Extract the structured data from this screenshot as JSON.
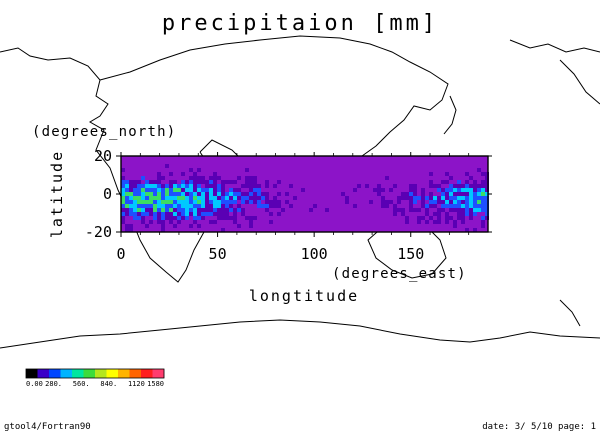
{
  "title": "precipitaion [mm]",
  "axes": {
    "y_label": "latitude",
    "y_units": "(degrees_north)",
    "x_label": "longtitude",
    "x_units": "(degrees_east)",
    "x_ticks": [
      "0",
      "50",
      "100",
      "150"
    ],
    "y_ticks": [
      "20",
      "0",
      "-20"
    ]
  },
  "colorbar": {
    "labels": [
      "0.00",
      "280.",
      "560.",
      "840.",
      "1120",
      "1580"
    ],
    "colors": [
      "#000000",
      "#3a00c8",
      "#0046ff",
      "#00b4ff",
      "#00e6a0",
      "#3cdc3c",
      "#b4e61e",
      "#ffff00",
      "#ffb400",
      "#ff6400",
      "#ff1e1e",
      "#ff3c6e"
    ]
  },
  "footer": {
    "left": "gtool4/Fortran90",
    "right": "date: 3/ 5/10 page: 1"
  },
  "map_colors": {
    "background": "#8c14c8",
    "low": "#5a00b4",
    "medium": "#1e50ff",
    "high": "#00c8ff",
    "peak": "#3cdc64"
  },
  "chart_data": {
    "type": "heatmap",
    "variable": "precipitaion [mm]",
    "xlim": [
      0,
      190
    ],
    "ylim": [
      -20,
      20
    ],
    "x_ticks": [
      0,
      50,
      100,
      150
    ],
    "y_ticks": [
      -20,
      0,
      20
    ],
    "color_range": [
      0,
      1580
    ]
  }
}
